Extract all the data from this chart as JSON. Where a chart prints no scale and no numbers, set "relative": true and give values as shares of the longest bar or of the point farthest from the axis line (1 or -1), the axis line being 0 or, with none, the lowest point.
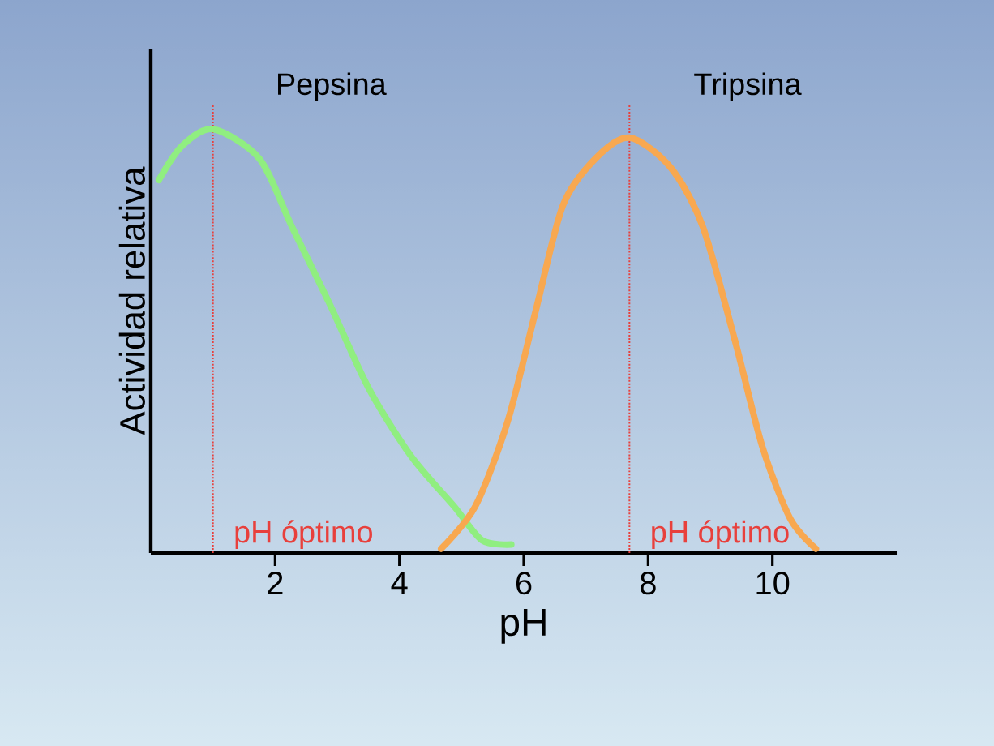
{
  "chart_data": {
    "type": "line",
    "xlabel": "pH",
    "ylabel": "Actividad relativa",
    "relative": true,
    "xlim": [
      0,
      12
    ],
    "xticks": [
      2,
      4,
      6,
      8,
      10
    ],
    "series": [
      {
        "name": "Pepsina",
        "color": "#90ee80",
        "x": [
          0.13,
          0.5,
          1.0,
          1.75,
          2.27,
          2.87,
          3.5,
          4.18,
          4.88,
          5.33,
          5.8
        ],
        "values": [
          0.88,
          0.96,
          1,
          0.93,
          0.77,
          0.59,
          0.39,
          0.23,
          0.11,
          0.03,
          0.02
        ]
      },
      {
        "name": "Tripsina",
        "color": "#f8a850",
        "x": [
          4.67,
          5.22,
          5.74,
          6.19,
          6.63,
          7.15,
          7.7,
          8.36,
          8.88,
          9.4,
          9.84,
          10.29,
          10.7
        ],
        "values": [
          0.01,
          0.11,
          0.31,
          0.57,
          0.82,
          0.93,
          0.98,
          0.91,
          0.77,
          0.5,
          0.25,
          0.08,
          0.01
        ]
      }
    ],
    "ref_lines": [
      {
        "axis": "x",
        "value": 1.0,
        "label": "pH óptimo",
        "color": "#e8403c",
        "line_style": "dotted"
      },
      {
        "axis": "x",
        "value": 7.7,
        "label": "pH óptimo",
        "color": "#e8403c",
        "line_style": "dotted"
      }
    ]
  }
}
